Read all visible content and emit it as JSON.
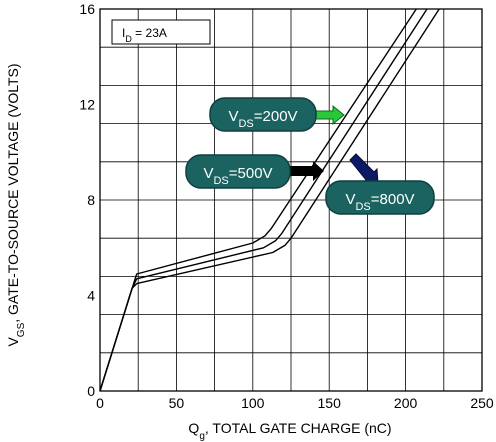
{
  "chart_data": {
    "type": "line",
    "xlabel": {
      "main": "Q",
      "sub": "g",
      "rest": ", TOTAL GATE CHARGE (nC)"
    },
    "ylabel": {
      "main": "V",
      "sub": "GS",
      "rest": ", GATE-TO-SOURCE  VOLTAGE (VOLTS)"
    },
    "xlim": [
      0,
      250
    ],
    "ylim": [
      0,
      16
    ],
    "xticks": [
      0,
      50,
      100,
      150,
      200,
      250
    ],
    "yticks": [
      0,
      4,
      8,
      12,
      16
    ],
    "grid": true,
    "condition": {
      "main": "I",
      "sub": "D",
      "rest": " = 23A"
    },
    "series": [
      {
        "name_main": "V",
        "name_sub": "DS",
        "name_rest": "=200V",
        "x": [
          0,
          21,
          24,
          100,
          108,
          112,
          207
        ],
        "y": [
          0,
          4.3,
          4.9,
          6.2,
          6.5,
          6.8,
          16.0
        ]
      },
      {
        "name_main": "V",
        "name_sub": "DS",
        "name_rest": "=500V",
        "x": [
          0,
          21,
          24,
          107,
          115,
          119,
          214
        ],
        "y": [
          0,
          4.3,
          4.7,
          6.0,
          6.3,
          6.6,
          16.0
        ]
      },
      {
        "name_main": "V",
        "name_sub": "DS",
        "name_rest": "=800V",
        "x": [
          0,
          21,
          24,
          113,
          121,
          125,
          222
        ],
        "y": [
          0,
          4.3,
          4.5,
          5.8,
          6.1,
          6.4,
          16.0
        ]
      }
    ],
    "colors": {
      "curve": "#000000",
      "grid": "#000000",
      "tag_fill": "#1a6360",
      "tag_stroke": "#0e3f3d",
      "arrow_200": "#29c73a",
      "arrow_500": "#000000",
      "arrow_800": "#0c1a66"
    }
  }
}
